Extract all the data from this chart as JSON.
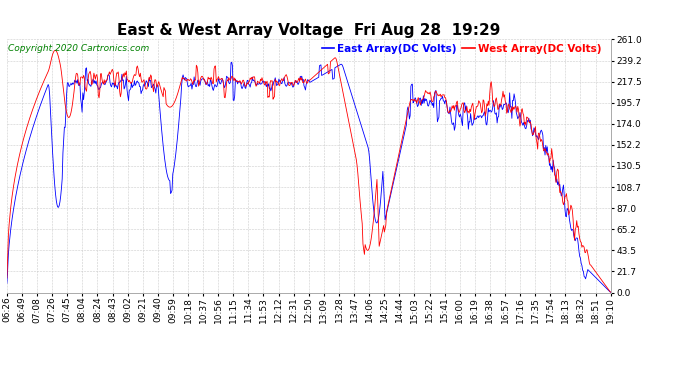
{
  "title": "East & West Array Voltage  Fri Aug 28  19:29",
  "copyright": "Copyright 2020 Cartronics.com",
  "legend_east": "East Array(DC Volts)",
  "legend_west": "West Array(DC Volts)",
  "east_color": "#0000ff",
  "west_color": "#ff0000",
  "yticks": [
    0.0,
    21.7,
    43.5,
    65.2,
    87.0,
    108.7,
    130.5,
    152.2,
    174.0,
    195.7,
    217.5,
    239.2,
    261.0
  ],
  "ymin": 0.0,
  "ymax": 261.0,
  "background_color": "#ffffff",
  "grid_color": "#cccccc",
  "xtick_labels": [
    "06:26",
    "06:49",
    "07:08",
    "07:26",
    "07:45",
    "08:04",
    "08:24",
    "08:43",
    "09:02",
    "09:21",
    "09:40",
    "09:59",
    "10:18",
    "10:37",
    "10:56",
    "11:15",
    "11:34",
    "11:53",
    "12:12",
    "12:31",
    "12:50",
    "13:09",
    "13:28",
    "13:47",
    "14:06",
    "14:25",
    "14:44",
    "15:03",
    "15:22",
    "15:41",
    "16:00",
    "16:19",
    "16:38",
    "16:57",
    "17:16",
    "17:35",
    "17:54",
    "18:13",
    "18:32",
    "18:51",
    "19:10"
  ],
  "title_fontsize": 11,
  "legend_fontsize": 7.5,
  "tick_fontsize": 6.5,
  "copyright_fontsize": 6.5
}
